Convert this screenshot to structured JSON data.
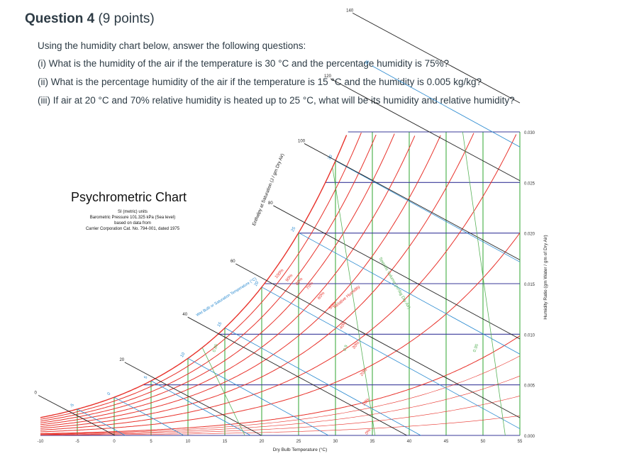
{
  "question": {
    "title": "Question 4",
    "points": "(9 points)",
    "intro": "Using the humidity chart below, answer the following questions:",
    "items": [
      "(i) What is the humidity of the air if the temperature is 30 °C and the percentage humidity is 75%?",
      "(ii) What is the percentage humidity of the air if the temperature is 15 °C and the humidity is 0.005 kg/kg?",
      "(iii) If air at 20 °C and 70% relative humidity is heated up to 25 °C, what will be its humidity and relative humidity?"
    ]
  },
  "chart_data": {
    "type": "line",
    "title": "Psychrometric Chart",
    "subtitle_lines": [
      "SI (metric) units",
      "Barometric Pressure 101.325 kPa (Sea level)",
      "based on data from",
      "Carrier Corporation Cat. No. 794-001, dated 1975"
    ],
    "xlabel": "Dry Bulb Temperature (°C)",
    "ylabel": "Humidity Ratio (gm Water / gm of Dry Air)",
    "enthalpy_label": "Enthalpy at Saturation (J / gm Dry Air)",
    "wet_bulb_label": "Wet Bulb or Saturation Temperature (°C)",
    "rh_label": "Relative Humidity",
    "volume_label": "Specific Volume (m³/kg Dry Air)",
    "x_ticks": [
      -10,
      -5,
      0,
      5,
      10,
      15,
      20,
      25,
      30,
      35,
      40,
      45,
      50,
      55
    ],
    "xlim": [
      -10,
      55
    ],
    "y_ticks": [
      0.0,
      0.005,
      0.01,
      0.015,
      0.02,
      0.025,
      0.03
    ],
    "y_tick_labels": [
      "0.000",
      "0.005",
      "0.010",
      "0.015",
      "0.020",
      "0.025",
      "0.030"
    ],
    "ylim": [
      0,
      0.03
    ],
    "rh_lines_percent": [
      10,
      20,
      30,
      40,
      50,
      60,
      70,
      80,
      90,
      100
    ],
    "rh_labels": [
      "100%",
      "90%",
      "80%",
      "70%",
      "60%",
      "50%",
      "40%",
      "30%",
      "20%",
      "10%",
      "0%"
    ],
    "enthalpy_ticks": [
      0,
      20,
      40,
      60,
      80,
      100,
      120,
      140
    ],
    "wet_bulb_ticks": [
      -5,
      0,
      5,
      10,
      15,
      20,
      25,
      30,
      35
    ],
    "specific_volume_ticks": [
      "0.85",
      "0.9",
      "0.95"
    ],
    "colors": {
      "rh": "#e8322b",
      "humidity": "#3a3a9a",
      "wetbulb": "#2a8ad0",
      "drybulb": "#2fa52f",
      "enthalpy": "#222222",
      "volume": "#59b259"
    }
  }
}
